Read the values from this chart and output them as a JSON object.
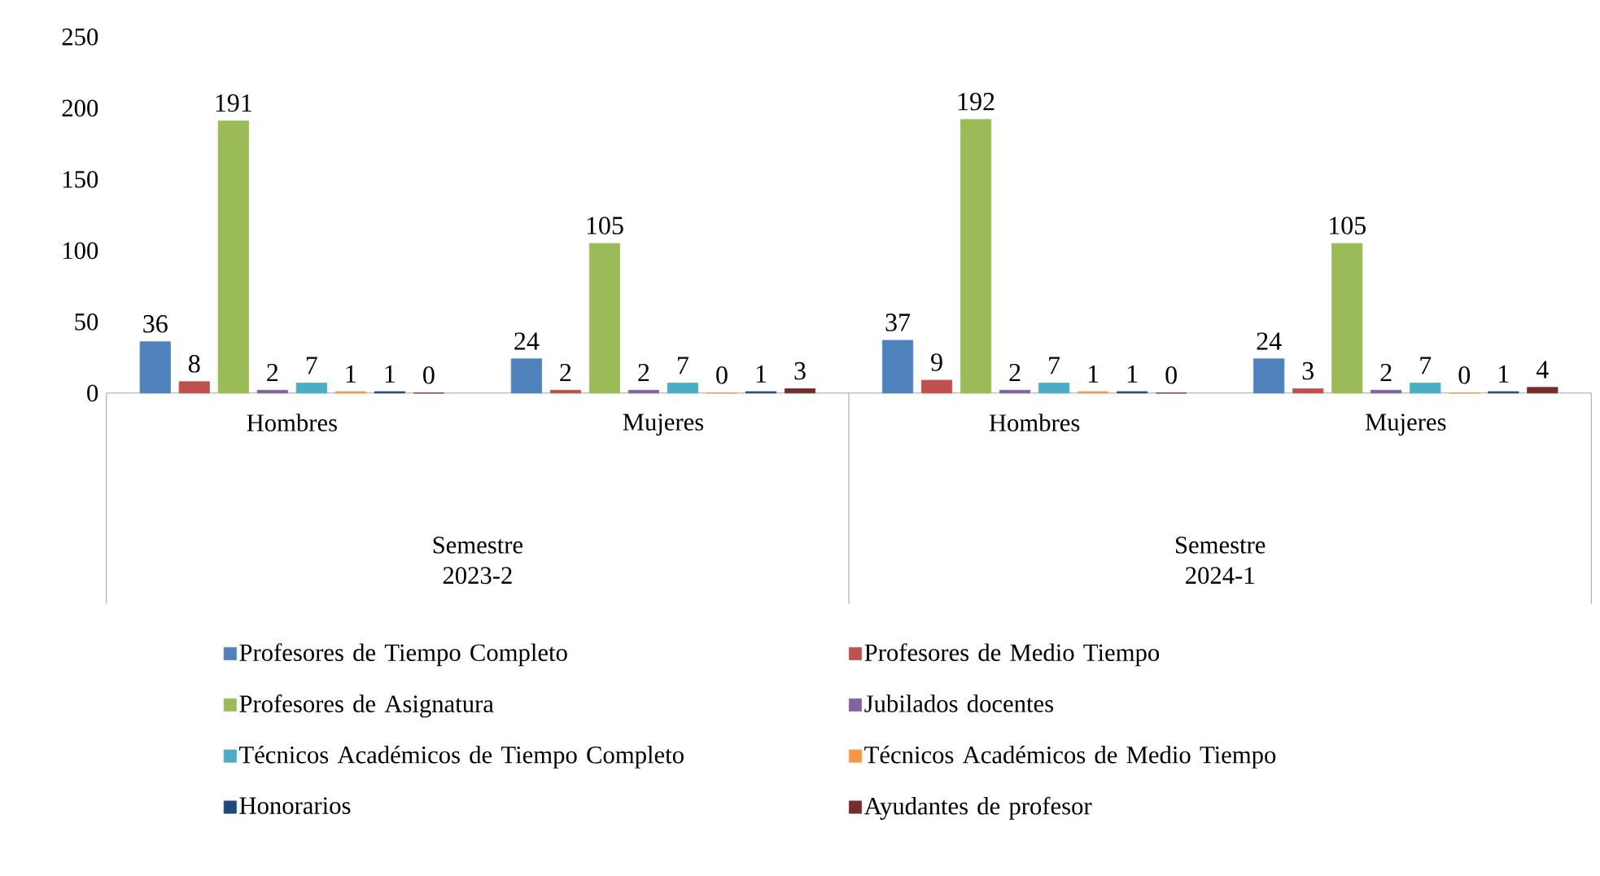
{
  "chart_data": {
    "type": "bar",
    "categories": [
      "Hombres",
      "Mujeres",
      "Hombres",
      "Mujeres"
    ],
    "annotations": [
      "Semestre 2023-2",
      "Semestre 2024-1"
    ],
    "series": [
      {
        "name": "Profesores de Tiempo Completo",
        "color": "#4f81bd",
        "values": [
          36,
          24,
          37,
          24
        ]
      },
      {
        "name": "Profesores de Medio Tiempo",
        "color": "#c0504d",
        "values": [
          8,
          2,
          9,
          3
        ]
      },
      {
        "name": "Profesores de Asignatura",
        "color": "#9bbb59",
        "values": [
          191,
          105,
          192,
          105
        ]
      },
      {
        "name": "Jubilados docentes",
        "color": "#8064a2",
        "values": [
          2,
          2,
          2,
          2
        ]
      },
      {
        "name": "Técnicos Académicos de Tiempo Completo",
        "color": "#4bacc6",
        "values": [
          7,
          7,
          7,
          7
        ]
      },
      {
        "name": "Técnicos Académicos de Medio Tiempo",
        "color": "#f79646",
        "values": [
          1,
          0,
          1,
          0
        ]
      },
      {
        "name": "Honorarios",
        "color": "#1f497d",
        "values": [
          1,
          1,
          1,
          1
        ]
      },
      {
        "name": "Ayudantes de profesor",
        "color": "#772c2a",
        "values": [
          0,
          3,
          0,
          4
        ]
      }
    ],
    "ylim": [
      0,
      250
    ],
    "yticks": [
      0,
      50,
      100,
      150,
      200,
      250
    ],
    "data_labels": true,
    "legend": "bottom"
  }
}
